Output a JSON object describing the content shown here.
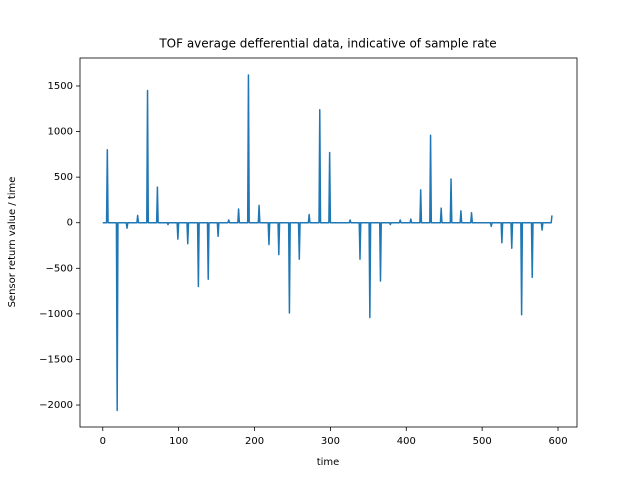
{
  "chart_data": {
    "type": "line",
    "title": "TOF average defferential data, indicative of sample rate",
    "x_label": "time",
    "y_label": "Sensor return value / time",
    "series": [
      {
        "color": "#1f77b4",
        "x": [
          0,
          5,
          6,
          7,
          18,
          19,
          20,
          31,
          32,
          33,
          45,
          46,
          47,
          58,
          59,
          60,
          71,
          72,
          73,
          85,
          86,
          87,
          98,
          99,
          100,
          111,
          112,
          113,
          125,
          126,
          127,
          138,
          139,
          140,
          151,
          152,
          153,
          165,
          166,
          167,
          178,
          179,
          180,
          191,
          192,
          193,
          205,
          206,
          207,
          218,
          219,
          220,
          231,
          232,
          233,
          245,
          246,
          247,
          258,
          259,
          260,
          271,
          272,
          273,
          285,
          286,
          287,
          298,
          299,
          300,
          325,
          326,
          327,
          338,
          339,
          340,
          351,
          352,
          353,
          365,
          366,
          367,
          378,
          379,
          380,
          391,
          392,
          393,
          405,
          406,
          407,
          418,
          419,
          420,
          431,
          432,
          433,
          445,
          446,
          447,
          458,
          459,
          460,
          471,
          472,
          473,
          485,
          486,
          487,
          511,
          512,
          513,
          525,
          526,
          527,
          538,
          539,
          540,
          551,
          552,
          553,
          565,
          566,
          567,
          578,
          579,
          580,
          591,
          592
        ],
        "values": [
          0,
          0,
          800,
          0,
          0,
          -2060,
          0,
          0,
          -60,
          0,
          0,
          80,
          0,
          0,
          1450,
          0,
          0,
          390,
          0,
          0,
          -20,
          0,
          0,
          -180,
          0,
          0,
          -230,
          0,
          0,
          -700,
          0,
          0,
          -620,
          0,
          0,
          -150,
          0,
          0,
          30,
          0,
          0,
          150,
          0,
          0,
          1620,
          0,
          0,
          190,
          0,
          0,
          -240,
          0,
          0,
          -350,
          0,
          0,
          -990,
          0,
          0,
          -400,
          0,
          0,
          90,
          0,
          0,
          1240,
          0,
          0,
          770,
          0,
          0,
          30,
          0,
          0,
          -400,
          0,
          0,
          -1040,
          0,
          0,
          -640,
          0,
          0,
          -20,
          0,
          0,
          30,
          0,
          0,
          40,
          0,
          0,
          360,
          0,
          0,
          960,
          0,
          0,
          160,
          0,
          0,
          480,
          0,
          0,
          130,
          0,
          0,
          110,
          0,
          0,
          -40,
          0,
          0,
          -220,
          0,
          0,
          -280,
          0,
          0,
          -1010,
          0,
          0,
          -600,
          0,
          0,
          -80,
          0,
          0,
          80
        ]
      }
    ],
    "xlim": [
      -30,
      625
    ],
    "ylim": [
      -2241,
      1807
    ],
    "xticks": [
      0,
      100,
      200,
      300,
      400,
      500,
      600
    ],
    "yticks": [
      {
        "value": -2000,
        "label": "−2000"
      },
      {
        "value": -1500,
        "label": "−1500"
      },
      {
        "value": -1000,
        "label": "−1000"
      },
      {
        "value": -500,
        "label": "−500"
      },
      0,
      500,
      1000,
      1500
    ]
  }
}
